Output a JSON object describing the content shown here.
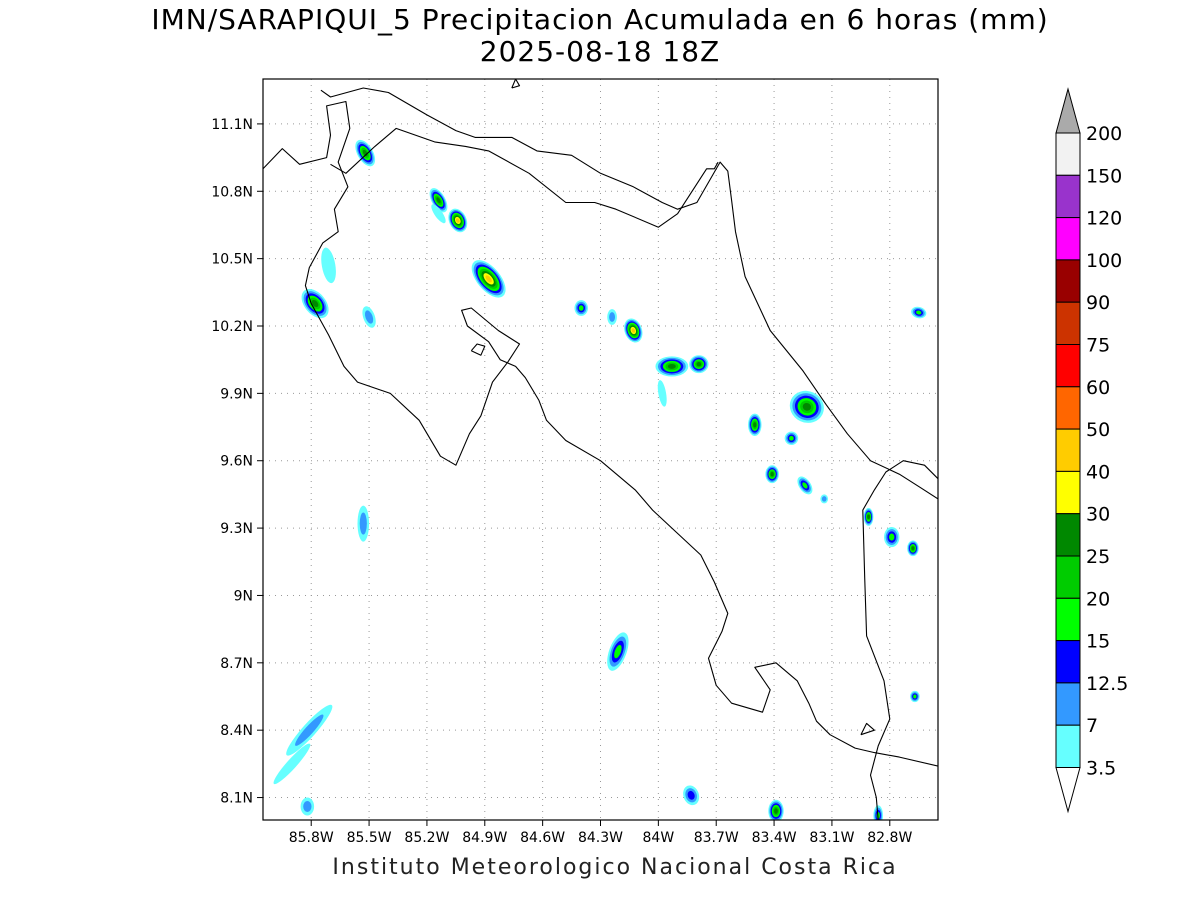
{
  "title": {
    "line1": "IMN/SARAPIQUI_5 Precipitacion Acumulada en 6 horas (mm)",
    "line2": "2025-08-18 18Z"
  },
  "credit": "Instituto Meteorologico Nacional Costa Rica",
  "map": {
    "lon_range": [
      -86.05,
      -82.55
    ],
    "lat_range": [
      8.0,
      11.3
    ],
    "lon_ticks": [
      "85.8W",
      "85.5W",
      "85.2W",
      "84.9W",
      "84.6W",
      "84.3W",
      "84W",
      "83.7W",
      "83.4W",
      "83.1W",
      "82.8W"
    ],
    "lat_ticks": [
      "11.1N",
      "10.8N",
      "10.5N",
      "10.2N",
      "9.9N",
      "9.6N",
      "9.3N",
      "9N",
      "8.7N",
      "8.4N",
      "8.1N"
    ],
    "grid": "dotted"
  },
  "colorbar": {
    "levels": [
      "200",
      "150",
      "120",
      "100",
      "90",
      "75",
      "60",
      "50",
      "40",
      "30",
      "25",
      "20",
      "15",
      "12.5",
      "7",
      "3.5"
    ],
    "colors": [
      "#f2f2f2",
      "#9933cc",
      "#ff00ff",
      "#990000",
      "#cc3300",
      "#ff0000",
      "#ff6600",
      "#ffcc00",
      "#ffff00",
      "#008800",
      "#00cc00",
      "#00ff00",
      "#0000ff",
      "#3399ff",
      "#66ffff"
    ],
    "over_color": "#aaaaaa",
    "under_color": "#ffffff"
  },
  "precip_cells": [
    {
      "lon": -85.52,
      "lat": 10.97,
      "peak_level": "25",
      "angle": -30,
      "rx": 0.04,
      "ry": 0.065
    },
    {
      "lon": -85.14,
      "lat": 10.76,
      "peak_level": "25",
      "angle": -30,
      "rx": 0.035,
      "ry": 0.06
    },
    {
      "lon": -85.04,
      "lat": 10.67,
      "peak_level": "40",
      "angle": -25,
      "rx": 0.045,
      "ry": 0.055
    },
    {
      "lon": -84.88,
      "lat": 10.41,
      "peak_level": "40",
      "angle": -40,
      "rx": 0.06,
      "ry": 0.1
    },
    {
      "lon": -85.78,
      "lat": 10.3,
      "peak_level": "25",
      "angle": -40,
      "rx": 0.055,
      "ry": 0.075
    },
    {
      "lon": -85.5,
      "lat": 10.24,
      "peak_level": "7",
      "angle": -20,
      "rx": 0.03,
      "ry": 0.05
    },
    {
      "lon": -85.71,
      "lat": 10.47,
      "peak_level": "3.5",
      "angle": -10,
      "rx": 0.035,
      "ry": 0.08
    },
    {
      "lon": -84.4,
      "lat": 10.28,
      "peak_level": "15",
      "angle": 0,
      "rx": 0.035,
      "ry": 0.035
    },
    {
      "lon": -84.24,
      "lat": 10.24,
      "peak_level": "7",
      "angle": 0,
      "rx": 0.025,
      "ry": 0.035
    },
    {
      "lon": -84.13,
      "lat": 10.18,
      "peak_level": "40",
      "angle": -20,
      "rx": 0.045,
      "ry": 0.055
    },
    {
      "lon": -83.93,
      "lat": 10.02,
      "peak_level": "25",
      "angle": 0,
      "rx": 0.085,
      "ry": 0.045
    },
    {
      "lon": -83.79,
      "lat": 10.03,
      "peak_level": "25",
      "angle": 0,
      "rx": 0.05,
      "ry": 0.04
    },
    {
      "lon": -83.5,
      "lat": 9.76,
      "peak_level": "25",
      "angle": 0,
      "rx": 0.035,
      "ry": 0.05
    },
    {
      "lon": -83.23,
      "lat": 9.84,
      "peak_level": "25",
      "angle": 25,
      "rx": 0.09,
      "ry": 0.07
    },
    {
      "lon": -83.31,
      "lat": 9.7,
      "peak_level": "15",
      "angle": -30,
      "rx": 0.035,
      "ry": 0.03
    },
    {
      "lon": -83.41,
      "lat": 9.54,
      "peak_level": "25",
      "angle": 0,
      "rx": 0.035,
      "ry": 0.04
    },
    {
      "lon": -83.24,
      "lat": 9.49,
      "peak_level": "15",
      "angle": -35,
      "rx": 0.03,
      "ry": 0.045
    },
    {
      "lon": -83.14,
      "lat": 9.43,
      "peak_level": "7",
      "angle": 0,
      "rx": 0.02,
      "ry": 0.02
    },
    {
      "lon": -82.91,
      "lat": 9.35,
      "peak_level": "25",
      "angle": 0,
      "rx": 0.025,
      "ry": 0.04
    },
    {
      "lon": -82.79,
      "lat": 9.26,
      "peak_level": "15",
      "angle": 0,
      "rx": 0.04,
      "ry": 0.045
    },
    {
      "lon": -82.68,
      "lat": 9.21,
      "peak_level": "25",
      "angle": 0,
      "rx": 0.03,
      "ry": 0.035
    },
    {
      "lon": -82.65,
      "lat": 10.26,
      "peak_level": "15",
      "angle": 15,
      "rx": 0.04,
      "ry": 0.025
    },
    {
      "lon": -85.53,
      "lat": 9.32,
      "peak_level": "7",
      "angle": 0,
      "rx": 0.03,
      "ry": 0.08
    },
    {
      "lon": -84.21,
      "lat": 8.75,
      "peak_level": "15",
      "angle": 20,
      "rx": 0.045,
      "ry": 0.09
    },
    {
      "lon": -85.81,
      "lat": 8.4,
      "peak_level": "7",
      "angle": 42,
      "rx": 0.035,
      "ry": 0.15
    },
    {
      "lon": -85.9,
      "lat": 8.25,
      "peak_level": "3.5",
      "angle": 42,
      "rx": 0.025,
      "ry": 0.12
    },
    {
      "lon": -85.82,
      "lat": 8.06,
      "peak_level": "7",
      "angle": 0,
      "rx": 0.035,
      "ry": 0.04
    },
    {
      "lon": -83.83,
      "lat": 8.11,
      "peak_level": "12.5",
      "angle": -20,
      "rx": 0.04,
      "ry": 0.045
    },
    {
      "lon": -83.39,
      "lat": 8.04,
      "peak_level": "25",
      "angle": 0,
      "rx": 0.04,
      "ry": 0.05
    },
    {
      "lon": -82.86,
      "lat": 8.02,
      "peak_level": "15",
      "angle": 0,
      "rx": 0.025,
      "ry": 0.045
    },
    {
      "lon": -82.67,
      "lat": 8.55,
      "peak_level": "15",
      "angle": 0,
      "rx": 0.025,
      "ry": 0.025
    },
    {
      "lon": -83.98,
      "lat": 9.9,
      "peak_level": "3.5",
      "angle": -10,
      "rx": 0.02,
      "ry": 0.06
    },
    {
      "lon": -85.14,
      "lat": 10.7,
      "peak_level": "3.5",
      "angle": -35,
      "rx": 0.02,
      "ry": 0.05
    }
  ],
  "coastlines": {
    "pacific": [
      [
        -86.05,
        10.9
      ],
      [
        -85.95,
        10.99
      ],
      [
        -85.86,
        10.92
      ],
      [
        -85.72,
        10.95
      ],
      [
        -85.7,
        11.05
      ],
      [
        -85.72,
        11.18
      ],
      [
        -85.62,
        11.2
      ],
      [
        -85.6,
        11.08
      ],
      [
        -85.66,
        10.93
      ],
      [
        -85.61,
        10.82
      ],
      [
        -85.68,
        10.72
      ],
      [
        -85.66,
        10.62
      ],
      [
        -85.74,
        10.57
      ],
      [
        -85.81,
        10.46
      ],
      [
        -85.83,
        10.38
      ],
      [
        -85.8,
        10.3
      ],
      [
        -85.71,
        10.16
      ],
      [
        -85.63,
        10.02
      ],
      [
        -85.56,
        9.95
      ],
      [
        -85.39,
        9.9
      ],
      [
        -85.24,
        9.78
      ],
      [
        -85.13,
        9.62
      ],
      [
        -85.05,
        9.58
      ],
      [
        -84.98,
        9.72
      ],
      [
        -84.92,
        9.8
      ],
      [
        -84.86,
        9.95
      ],
      [
        -84.78,
        10.04
      ],
      [
        -84.72,
        10.12
      ],
      [
        -84.83,
        10.18
      ],
      [
        -84.97,
        10.28
      ],
      [
        -85.02,
        10.27
      ],
      [
        -84.99,
        10.2
      ],
      [
        -84.88,
        10.13
      ],
      [
        -84.82,
        10.05
      ],
      [
        -84.74,
        10.02
      ],
      [
        -84.69,
        9.97
      ],
      [
        -84.62,
        9.87
      ],
      [
        -84.58,
        9.78
      ],
      [
        -84.48,
        9.69
      ],
      [
        -84.3,
        9.6
      ],
      [
        -84.12,
        9.47
      ],
      [
        -84.03,
        9.38
      ],
      [
        -83.93,
        9.3
      ],
      [
        -83.78,
        9.18
      ],
      [
        -83.71,
        9.06
      ],
      [
        -83.64,
        8.92
      ],
      [
        -83.67,
        8.84
      ],
      [
        -83.74,
        8.72
      ],
      [
        -83.7,
        8.6
      ],
      [
        -83.62,
        8.52
      ],
      [
        -83.46,
        8.48
      ],
      [
        -83.42,
        8.58
      ],
      [
        -83.5,
        8.68
      ],
      [
        -83.39,
        8.7
      ],
      [
        -83.28,
        8.62
      ],
      [
        -83.22,
        8.52
      ],
      [
        -83.18,
        8.44
      ],
      [
        -83.11,
        8.38
      ],
      [
        -82.98,
        8.32
      ],
      [
        -82.88,
        8.3
      ],
      [
        -82.75,
        8.28
      ],
      [
        -82.55,
        8.24
      ]
    ],
    "caribbean": [
      [
        -85.75,
        11.25
      ],
      [
        -85.7,
        11.22
      ],
      [
        -85.53,
        11.26
      ],
      [
        -85.4,
        11.24
      ],
      [
        -85.2,
        11.14
      ],
      [
        -85.05,
        11.07
      ],
      [
        -84.95,
        11.04
      ],
      [
        -84.76,
        11.04
      ],
      [
        -84.63,
        10.98
      ],
      [
        -84.45,
        10.96
      ],
      [
        -84.3,
        10.88
      ],
      [
        -84.13,
        10.82
      ],
      [
        -83.98,
        10.75
      ],
      [
        -83.9,
        10.72
      ],
      [
        -83.8,
        10.75
      ],
      [
        -83.68,
        10.93
      ],
      [
        -83.64,
        10.89
      ],
      [
        -83.62,
        10.76
      ],
      [
        -83.6,
        10.62
      ],
      [
        -83.55,
        10.42
      ],
      [
        -83.42,
        10.18
      ],
      [
        -83.25,
        10.0
      ],
      [
        -83.13,
        9.85
      ],
      [
        -83.02,
        9.72
      ],
      [
        -82.9,
        9.6
      ],
      [
        -82.75,
        9.54
      ],
      [
        -82.64,
        9.48
      ],
      [
        -82.55,
        9.43
      ]
    ],
    "border_north": [
      [
        -85.7,
        10.92
      ],
      [
        -85.62,
        10.88
      ],
      [
        -85.47,
        11.0
      ],
      [
        -85.36,
        11.08
      ],
      [
        -85.16,
        11.02
      ],
      [
        -85.0,
        11.0
      ],
      [
        -84.88,
        10.98
      ],
      [
        -84.67,
        10.88
      ],
      [
        -84.48,
        10.75
      ],
      [
        -84.33,
        10.75
      ],
      [
        -84.22,
        10.72
      ],
      [
        -84.0,
        10.64
      ],
      [
        -83.9,
        10.7
      ],
      [
        -83.75,
        10.9
      ],
      [
        -83.71,
        10.9
      ],
      [
        -83.69,
        10.93
      ]
    ],
    "border_south": [
      [
        -82.55,
        9.52
      ],
      [
        -82.62,
        9.58
      ],
      [
        -82.73,
        9.6
      ],
      [
        -82.82,
        9.55
      ],
      [
        -82.88,
        9.47
      ],
      [
        -82.94,
        9.38
      ],
      [
        -82.93,
        9.08
      ],
      [
        -82.92,
        8.82
      ],
      [
        -82.83,
        8.62
      ],
      [
        -82.8,
        8.45
      ],
      [
        -82.86,
        8.33
      ],
      [
        -82.9,
        8.2
      ],
      [
        -82.87,
        8.1
      ],
      [
        -82.86,
        8.0
      ]
    ],
    "lake_island": [
      [
        -84.76,
        11.26
      ],
      [
        -84.74,
        11.3
      ],
      [
        -84.72,
        11.27
      ],
      [
        -84.76,
        11.26
      ]
    ],
    "small_island": [
      [
        -84.97,
        10.09
      ],
      [
        -84.94,
        10.12
      ],
      [
        -84.9,
        10.11
      ],
      [
        -84.92,
        10.07
      ],
      [
        -84.97,
        10.09
      ]
    ],
    "burica": [
      [
        -82.95,
        8.38
      ],
      [
        -82.92,
        8.43
      ],
      [
        -82.88,
        8.4
      ],
      [
        -82.95,
        8.38
      ]
    ]
  }
}
